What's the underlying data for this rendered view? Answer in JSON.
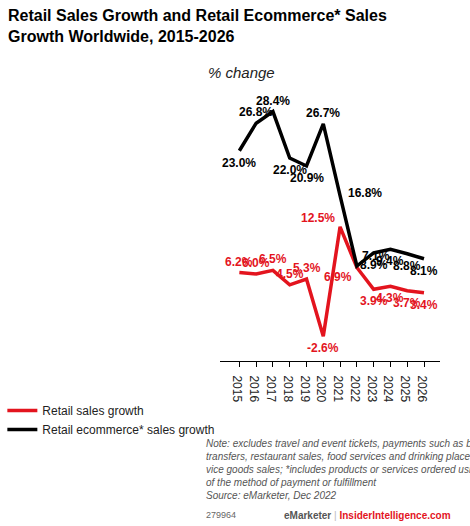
{
  "chart_data": {
    "type": "line",
    "title": "Retail Sales Growth and Retail Ecommerce* Sales Growth Worldwide, 2015-2026",
    "subtitle": "% change",
    "categories": [
      "2015",
      "2016",
      "2017",
      "2018",
      "2019",
      "2020",
      "2021",
      "2022",
      "2023",
      "2024",
      "2025",
      "2026"
    ],
    "series": [
      {
        "name": "Retail sales growth",
        "color": "#e3141e",
        "values": [
          6.2,
          6.0,
          6.5,
          4.5,
          5.3,
          -2.6,
          12.5,
          6.9,
          3.9,
          4.3,
          3.7,
          3.4
        ],
        "value_labels": [
          "6.2%",
          "6.0%",
          "6.5%",
          "4.5%",
          "5.3%",
          "-2.6%",
          "12.5%",
          "6.9%",
          "3.9%",
          "4.3%",
          "3.7%",
          "3.4%"
        ]
      },
      {
        "name": "Retail ecommerce* sales growth",
        "color": "#000000",
        "values": [
          23.0,
          26.8,
          28.4,
          22.0,
          20.9,
          26.7,
          16.8,
          7.1,
          8.9,
          9.4,
          8.8,
          8.1
        ],
        "value_labels": [
          "23.0%",
          "26.8%",
          "28.4%",
          "22.0%",
          "20.9%",
          "26.7%",
          "16.8%",
          "7.1%",
          "8.9%",
          "9.4%",
          "8.8%",
          "8.1%"
        ]
      }
    ],
    "ylim": [
      -6,
      30
    ],
    "grid": false,
    "tick_labels": "x",
    "data_labels": true,
    "legend": "bottom-left",
    "note": "Note: excludes travel and event tickets, payments such as bill pay, taxes, or money transfers, restaurant sales, food services and drinking place sales, gambling and other vice goods sales; *includes products or services ordered using the internet, regardless of the method of payment or fulfillment",
    "source": "Source: eMarketer, Dec 2022",
    "footer_id": "279964",
    "footer_brand": [
      "eMarketer",
      "|",
      "InsiderIntelligence.com"
    ]
  }
}
